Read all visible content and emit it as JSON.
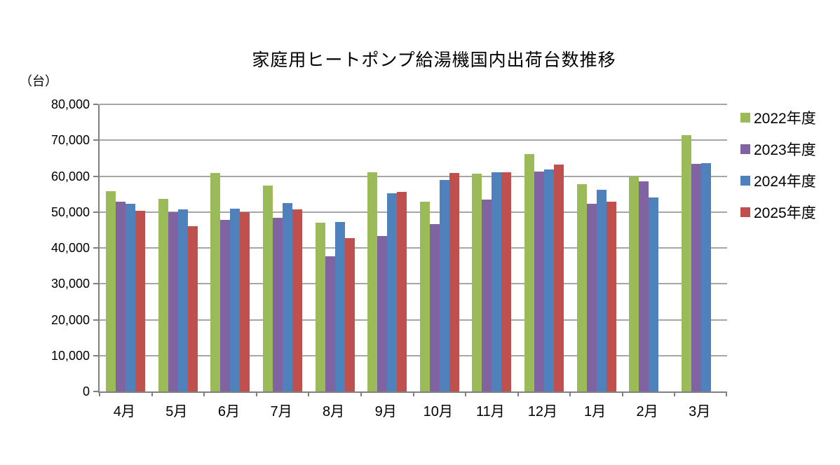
{
  "chart_data": {
    "type": "bar",
    "title": "家庭用ヒートポンプ給湯機国内出荷台数推移",
    "unit_label": "（台）",
    "categories": [
      "4月",
      "5月",
      "6月",
      "7月",
      "8月",
      "9月",
      "10月",
      "11月",
      "12月",
      "1月",
      "2月",
      "3月"
    ],
    "series": [
      {
        "name": "2022年度",
        "color": "#9BBB59",
        "values": [
          55900,
          53700,
          60900,
          57400,
          47000,
          61000,
          52800,
          60700,
          66100,
          57800,
          59900,
          71400
        ]
      },
      {
        "name": "2023年度",
        "color": "#8064A2",
        "values": [
          52900,
          50000,
          47800,
          48400,
          37600,
          43400,
          46700,
          53500,
          61300,
          52300,
          58500,
          63400
        ]
      },
      {
        "name": "2024年度",
        "color": "#4F81BD",
        "values": [
          52200,
          50700,
          51000,
          52400,
          47200,
          55200,
          58900,
          61100,
          61900,
          56200,
          54000,
          63600
        ]
      },
      {
        "name": "2025年度",
        "color": "#C0504D",
        "values": [
          50400,
          46000,
          50000,
          50800,
          42700,
          55700,
          60800,
          61100,
          63300,
          52800,
          null,
          null
        ]
      }
    ],
    "ylim": [
      0,
      80000
    ],
    "ytick_step": 10000,
    "ytick_labels": [
      "0",
      "10,000",
      "20,000",
      "30,000",
      "40,000",
      "50,000",
      "60,000",
      "70,000",
      "80,000"
    ],
    "grid": true,
    "legend_position": "right"
  },
  "colors": {
    "background": "#FFFFFF",
    "axis": "#808080",
    "gridline": "#A6A6A6",
    "text": "#000000"
  }
}
